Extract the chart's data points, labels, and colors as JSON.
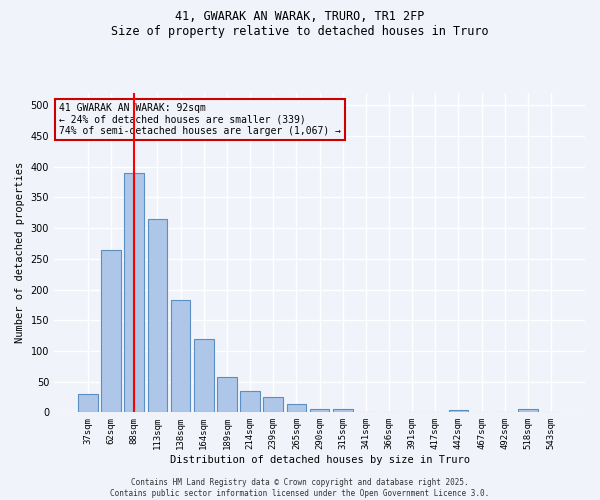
{
  "title_line1": "41, GWARAK AN WARAK, TRURO, TR1 2FP",
  "title_line2": "Size of property relative to detached houses in Truro",
  "xlabel": "Distribution of detached houses by size in Truro",
  "ylabel": "Number of detached properties",
  "bar_labels": [
    "37sqm",
    "62sqm",
    "88sqm",
    "113sqm",
    "138sqm",
    "164sqm",
    "189sqm",
    "214sqm",
    "239sqm",
    "265sqm",
    "290sqm",
    "315sqm",
    "341sqm",
    "366sqm",
    "391sqm",
    "417sqm",
    "442sqm",
    "467sqm",
    "492sqm",
    "518sqm",
    "543sqm"
  ],
  "bar_heights": [
    30,
    265,
    390,
    315,
    183,
    120,
    58,
    34,
    25,
    14,
    6,
    5,
    0,
    0,
    0,
    0,
    4,
    0,
    0,
    5,
    0
  ],
  "bar_color": "#aec6e8",
  "bar_edge_color": "#5a8fc2",
  "red_line_index": 2,
  "annotation_title": "41 GWARAK AN WARAK: 92sqm",
  "annotation_line2": "← 24% of detached houses are smaller (339)",
  "annotation_line3": "74% of semi-detached houses are larger (1,067) →",
  "annotation_box_color": "#cc0000",
  "ylim": [
    0,
    520
  ],
  "yticks": [
    0,
    50,
    100,
    150,
    200,
    250,
    300,
    350,
    400,
    450,
    500
  ],
  "background_color": "#f0f4fa",
  "grid_color": "#ffffff",
  "footer_line1": "Contains HM Land Registry data © Crown copyright and database right 2025.",
  "footer_line2": "Contains public sector information licensed under the Open Government Licence 3.0."
}
